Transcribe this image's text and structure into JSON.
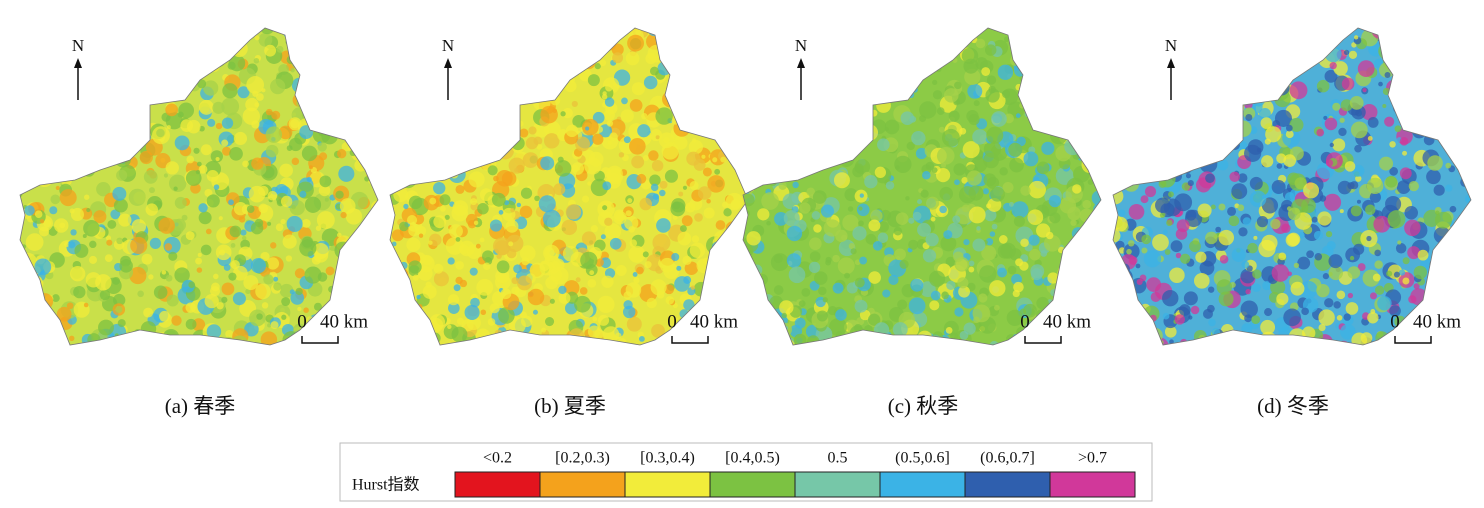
{
  "panels": [
    {
      "north": "N",
      "scale_zero": "0",
      "scale_label": "40 km",
      "caption": "(a) 春季"
    },
    {
      "north": "N",
      "scale_zero": "0",
      "scale_label": "40 km",
      "caption": "(b) 夏季"
    },
    {
      "north": "N",
      "scale_zero": "0",
      "scale_label": "40 km",
      "caption": "(c) 秋季"
    },
    {
      "north": "N",
      "scale_zero": "0",
      "scale_label": "40 km",
      "caption": "(d) 冬季"
    }
  ],
  "legend": {
    "title": "Hurst指数",
    "classes": [
      {
        "label": "<0.2",
        "color": "#e3141e"
      },
      {
        "label": "[0.2,0.3)",
        "color": "#f4a21c"
      },
      {
        "label": "[0.3,0.4)",
        "color": "#f2ec3a"
      },
      {
        "label": "[0.4,0.5)",
        "color": "#7cc242"
      },
      {
        "label": "0.5",
        "color": "#76c7a8"
      },
      {
        "label": "(0.5,0.6]",
        "color": "#3bb3e6"
      },
      {
        "label": "(0.6,0.7]",
        "color": "#2f5fae"
      },
      {
        "label": ">0.7",
        "color": "#d1389a"
      }
    ]
  }
}
